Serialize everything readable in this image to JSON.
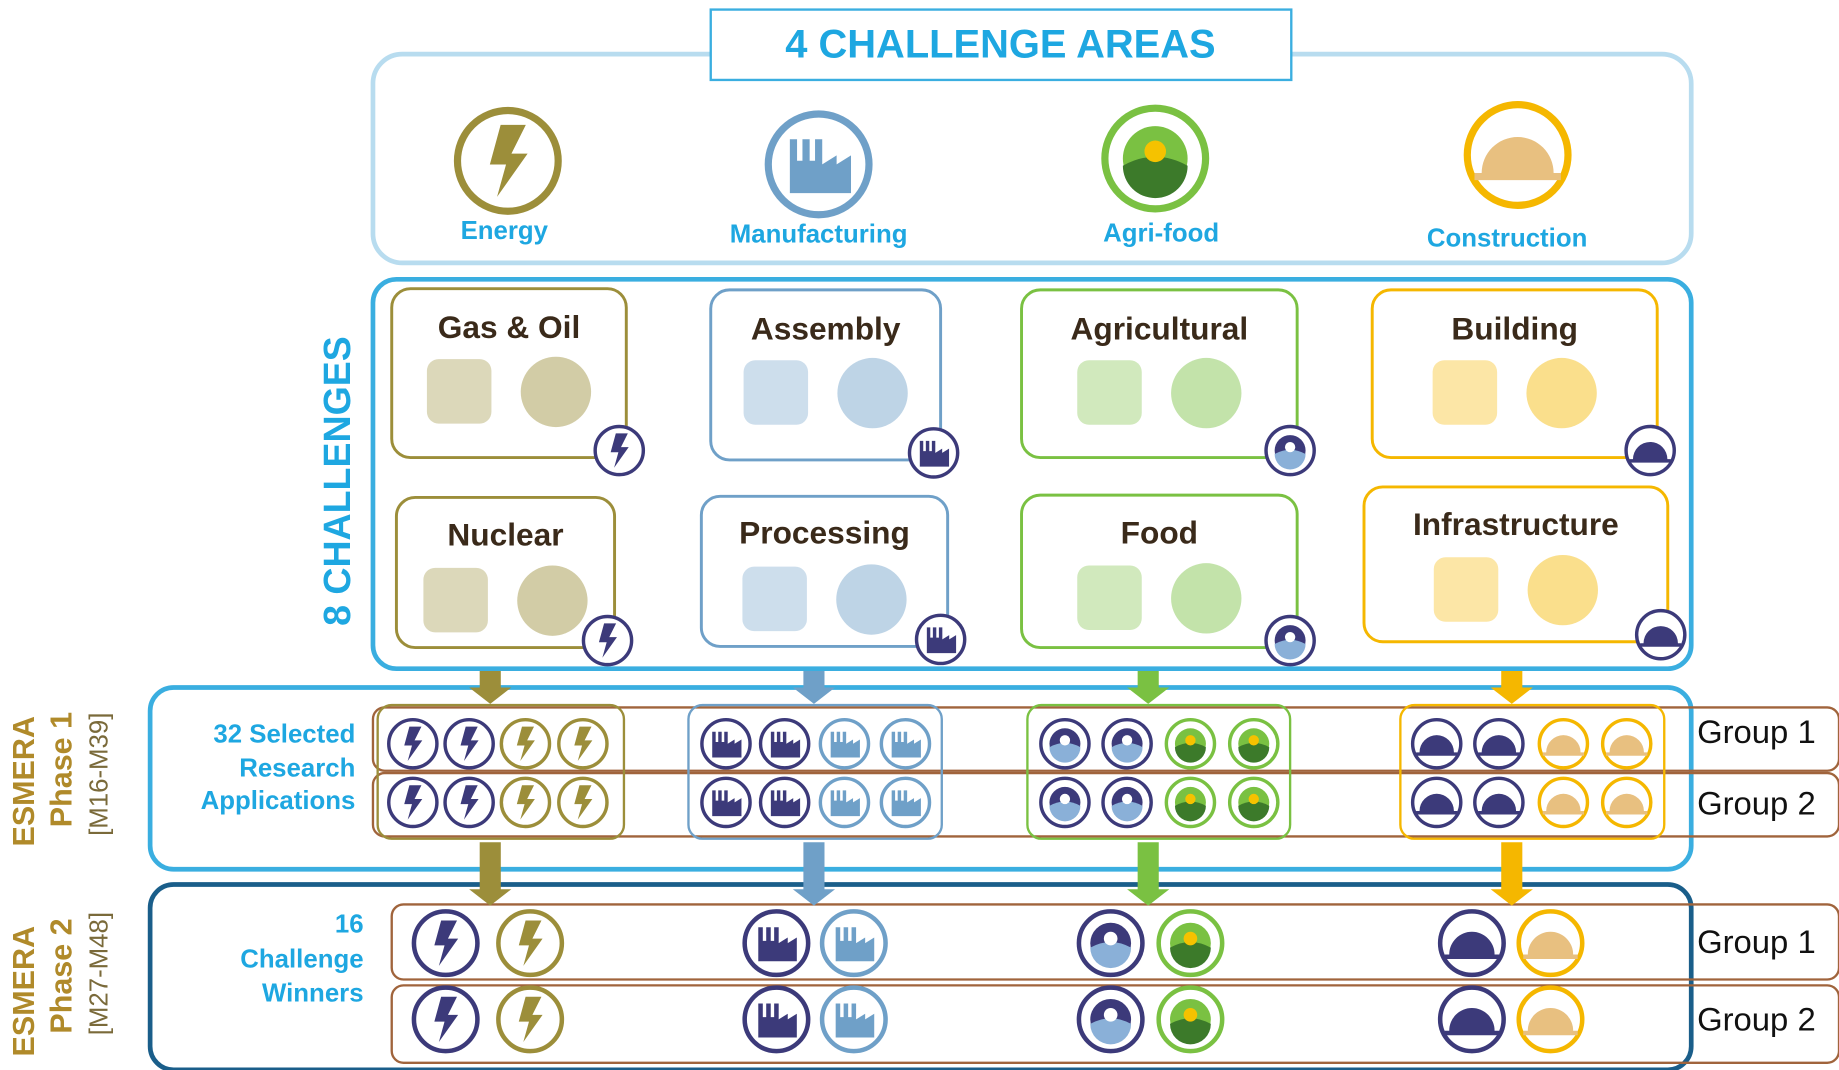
{
  "header": {
    "title": "4 CHALLENGE AREAS"
  },
  "areas": [
    {
      "label": "Energy"
    },
    {
      "label": "Manufacturing"
    },
    {
      "label": "Agri-food"
    },
    {
      "label": "Construction"
    }
  ],
  "challenges": {
    "label": "8 CHALLENGES",
    "items": [
      {
        "title": "Gas & Oil"
      },
      {
        "title": "Nuclear"
      },
      {
        "title": "Assembly"
      },
      {
        "title": "Processing"
      },
      {
        "title": "Agricultural"
      },
      {
        "title": "Food"
      },
      {
        "title": "Building"
      },
      {
        "title": "Infrastructure"
      }
    ]
  },
  "phases": [
    {
      "name": "ESMERA",
      "phase": "Phase 1",
      "period": "[M16-M39]",
      "description": [
        "32 Selected",
        "Research",
        "Applications"
      ],
      "groups": [
        "Group 1",
        "Group 2"
      ]
    },
    {
      "name": "ESMERA",
      "phase": "Phase 2",
      "period": "[M27-M48]",
      "description": [
        "16",
        "Challenge",
        "Winners"
      ],
      "groups": [
        "Group 1",
        "Group 2"
      ]
    }
  ]
}
